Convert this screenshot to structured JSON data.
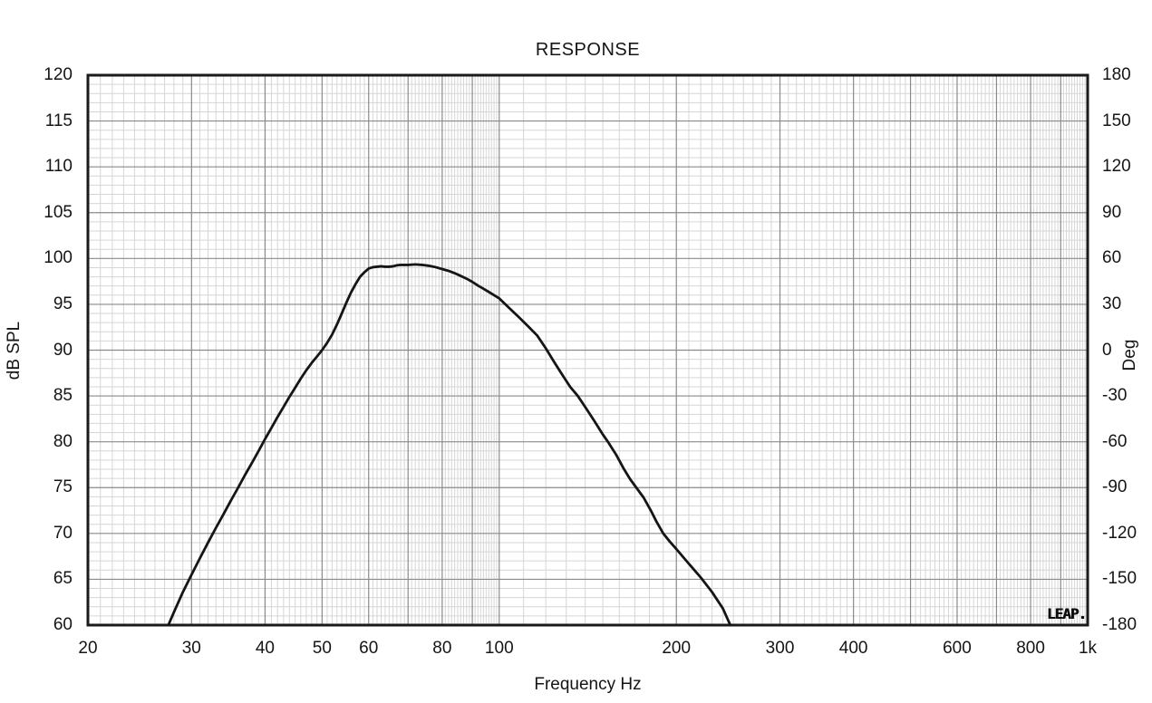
{
  "title": "RESPONSE",
  "colors": {
    "background": "#ffffff",
    "curve": "#151515",
    "grid_minor": "#d6d6d6",
    "grid_major": "#8a8a8a",
    "plot_border": "#1a1a1a",
    "text": "#151515"
  },
  "chart_data": {
    "type": "line",
    "title": "RESPONSE",
    "xlabel": "Frequency Hz",
    "ylabel_left": "dB SPL",
    "ylabel_right": "Deg",
    "x_scale": "log",
    "xlim": [
      20,
      1000
    ],
    "ylim_left": [
      60,
      120
    ],
    "ylim_right": [
      -180,
      180
    ],
    "grid": {
      "db_major_step": 5,
      "db_minor_step": 1,
      "deg_major_step": 30,
      "x_major_lines": [
        30,
        40,
        50,
        60,
        70,
        80,
        90,
        100,
        200,
        300,
        400,
        500,
        600,
        700,
        800,
        900
      ],
      "x_minor_lines": "integer frequencies 21-99 and tens 110-990"
    },
    "x_tick_labels": [
      {
        "f": 20,
        "label": "20"
      },
      {
        "f": 30,
        "label": "30"
      },
      {
        "f": 40,
        "label": "40"
      },
      {
        "f": 50,
        "label": "50"
      },
      {
        "f": 60,
        "label": "60"
      },
      {
        "f": 80,
        "label": "80"
      },
      {
        "f": 100,
        "label": "100"
      },
      {
        "f": 200,
        "label": "200"
      },
      {
        "f": 300,
        "label": "300"
      },
      {
        "f": 400,
        "label": "400"
      },
      {
        "f": 600,
        "label": "600"
      },
      {
        "f": 800,
        "label": "800"
      },
      {
        "f": 1000,
        "label": "1k"
      }
    ],
    "y_left_ticks": [
      120,
      115,
      110,
      105,
      100,
      95,
      90,
      85,
      80,
      75,
      70,
      65,
      60
    ],
    "y_right_ticks": [
      180,
      150,
      120,
      90,
      60,
      30,
      0,
      -30,
      -60,
      -90,
      -120,
      -150,
      -180
    ],
    "legend": null,
    "watermark": "LEAP.",
    "series": [
      {
        "name": "SPL response",
        "unit": "dB SPL vs Hz",
        "points": [
          [
            27.4,
            60.0
          ],
          [
            28,
            61.4
          ],
          [
            29,
            63.6
          ],
          [
            30,
            65.5
          ],
          [
            31,
            67.3
          ],
          [
            32,
            69.0
          ],
          [
            33,
            70.6
          ],
          [
            34,
            72.1
          ],
          [
            35,
            73.6
          ],
          [
            36,
            75.0
          ],
          [
            37,
            76.4
          ],
          [
            38,
            77.7
          ],
          [
            39,
            79.0
          ],
          [
            40,
            80.3
          ],
          [
            41,
            81.5
          ],
          [
            42,
            82.7
          ],
          [
            43,
            83.8
          ],
          [
            44,
            84.9
          ],
          [
            45,
            85.9
          ],
          [
            46,
            86.9
          ],
          [
            47,
            87.8
          ],
          [
            48,
            88.6
          ],
          [
            49,
            89.3
          ],
          [
            50,
            90.0
          ],
          [
            51,
            90.8
          ],
          [
            52,
            91.7
          ],
          [
            53,
            92.8
          ],
          [
            54,
            94.0
          ],
          [
            55,
            95.2
          ],
          [
            56,
            96.3
          ],
          [
            57,
            97.2
          ],
          [
            58,
            98.0
          ],
          [
            59,
            98.5
          ],
          [
            60,
            98.9
          ],
          [
            61,
            99.05
          ],
          [
            62,
            99.1
          ],
          [
            63,
            99.15
          ],
          [
            64,
            99.1
          ],
          [
            65,
            99.1
          ],
          [
            66,
            99.15
          ],
          [
            67,
            99.25
          ],
          [
            68,
            99.3
          ],
          [
            70,
            99.3
          ],
          [
            72,
            99.35
          ],
          [
            74,
            99.3
          ],
          [
            76,
            99.2
          ],
          [
            78,
            99.05
          ],
          [
            80,
            98.85
          ],
          [
            82,
            98.65
          ],
          [
            84,
            98.4
          ],
          [
            86,
            98.1
          ],
          [
            88,
            97.8
          ],
          [
            90,
            97.45
          ],
          [
            92,
            97.05
          ],
          [
            94,
            96.7
          ],
          [
            96,
            96.35
          ],
          [
            98,
            96.0
          ],
          [
            100,
            95.65
          ],
          [
            104,
            94.6
          ],
          [
            108,
            93.6
          ],
          [
            112,
            92.6
          ],
          [
            116,
            91.6
          ],
          [
            120,
            90.2
          ],
          [
            124,
            88.7
          ],
          [
            128,
            87.3
          ],
          [
            132,
            86.0
          ],
          [
            136,
            85.0
          ],
          [
            140,
            83.8
          ],
          [
            145,
            82.3
          ],
          [
            150,
            80.8
          ],
          [
            153,
            80.0
          ],
          [
            158,
            78.6
          ],
          [
            163,
            77.0
          ],
          [
            167,
            75.9
          ],
          [
            171,
            75.0
          ],
          [
            176,
            73.9
          ],
          [
            181,
            72.5
          ],
          [
            185,
            71.3
          ],
          [
            190,
            70.0
          ],
          [
            195,
            69.1
          ],
          [
            200,
            68.3
          ],
          [
            210,
            66.7
          ],
          [
            220,
            65.2
          ],
          [
            230,
            63.6
          ],
          [
            240,
            61.8
          ],
          [
            247,
            60.0
          ]
        ]
      }
    ]
  }
}
